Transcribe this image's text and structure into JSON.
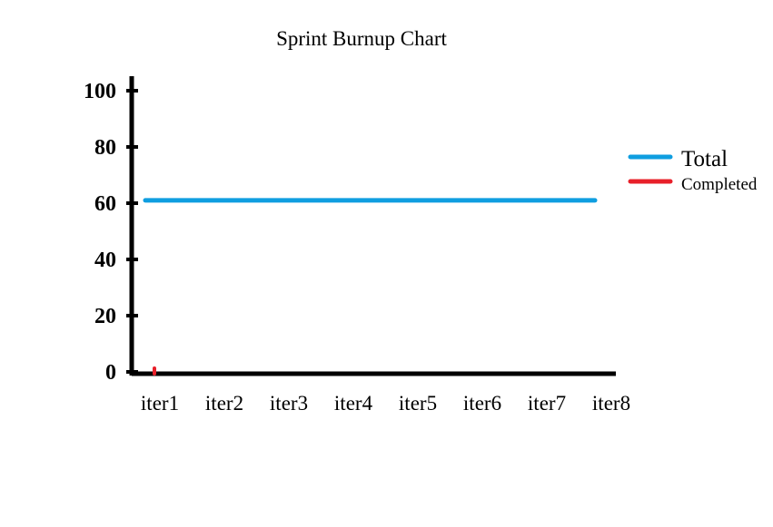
{
  "chart_data": {
    "type": "line",
    "title": "Sprint Burnup Chart",
    "xlabel": "",
    "ylabel": "",
    "categories": [
      "iter1",
      "iter2",
      "iter3",
      "iter4",
      "iter5",
      "iter6",
      "iter7",
      "iter8"
    ],
    "yticks": [
      0,
      20,
      40,
      60,
      80,
      100
    ],
    "ylim": [
      0,
      100
    ],
    "grid": false,
    "legend_position": "right",
    "series": [
      {
        "name": "Total",
        "color": "#0f9ee0",
        "values": [
          61,
          61,
          61,
          61,
          61,
          61,
          61,
          61
        ]
      },
      {
        "name": "Completed",
        "color": "#e8202a",
        "values": [
          0,
          null,
          null,
          null,
          null,
          null,
          null,
          null
        ]
      }
    ]
  }
}
